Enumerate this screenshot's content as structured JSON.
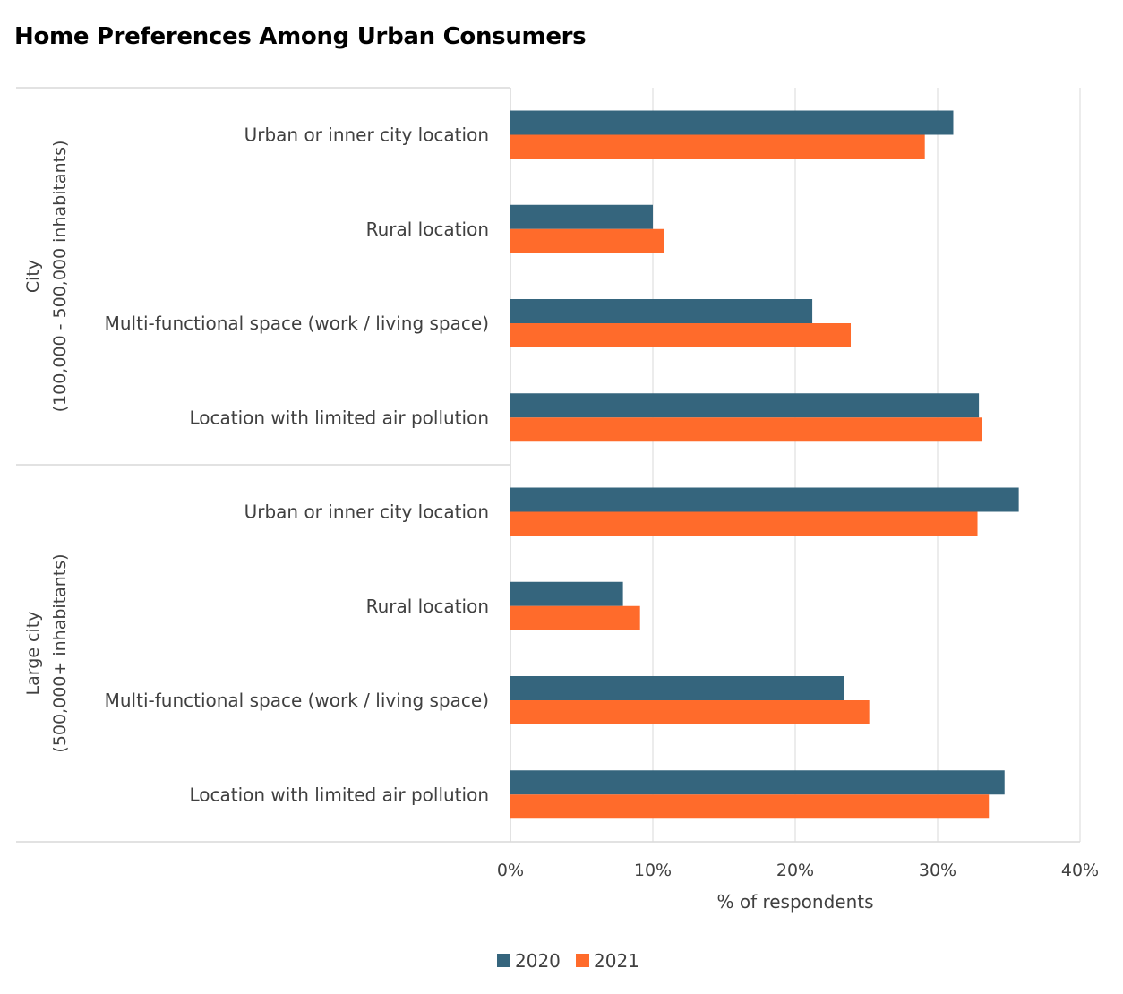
{
  "title": "Home Preferences Among Urban Consumers",
  "colors": {
    "2020": "#35657D",
    "2021": "#FF6B2B",
    "grid": "#d9d9d9",
    "text": "#404040"
  },
  "chart_data": {
    "type": "bar",
    "orientation": "horizontal",
    "xlabel": "% of respondents",
    "xlim": [
      0,
      40
    ],
    "xticks": [
      0,
      10,
      20,
      30,
      40
    ],
    "xtick_labels": [
      "0%",
      "10%",
      "20%",
      "30%",
      "40%"
    ],
    "grid": true,
    "legend_position": "bottom",
    "groups": [
      {
        "name": "City",
        "sublabel": "(100,000 - 500,000 inhabitants)",
        "categories": [
          "Urban or inner city location",
          "Rural location",
          "Multi-functional space (work / living space)",
          "Location with limited air pollution"
        ],
        "series": [
          {
            "name": "2020",
            "values": [
              31.1,
              10.0,
              21.2,
              32.9
            ]
          },
          {
            "name": "2021",
            "values": [
              29.1,
              10.8,
              23.9,
              33.1
            ]
          }
        ]
      },
      {
        "name": "Large city",
        "sublabel": "(500,000+ inhabitants)",
        "categories": [
          "Urban or inner city location",
          "Rural location",
          "Multi-functional space (work / living space)",
          "Location with limited air pollution"
        ],
        "series": [
          {
            "name": "2020",
            "values": [
              35.7,
              7.9,
              23.4,
              34.7
            ]
          },
          {
            "name": "2021",
            "values": [
              32.8,
              9.1,
              25.2,
              33.6
            ]
          }
        ]
      }
    ]
  }
}
